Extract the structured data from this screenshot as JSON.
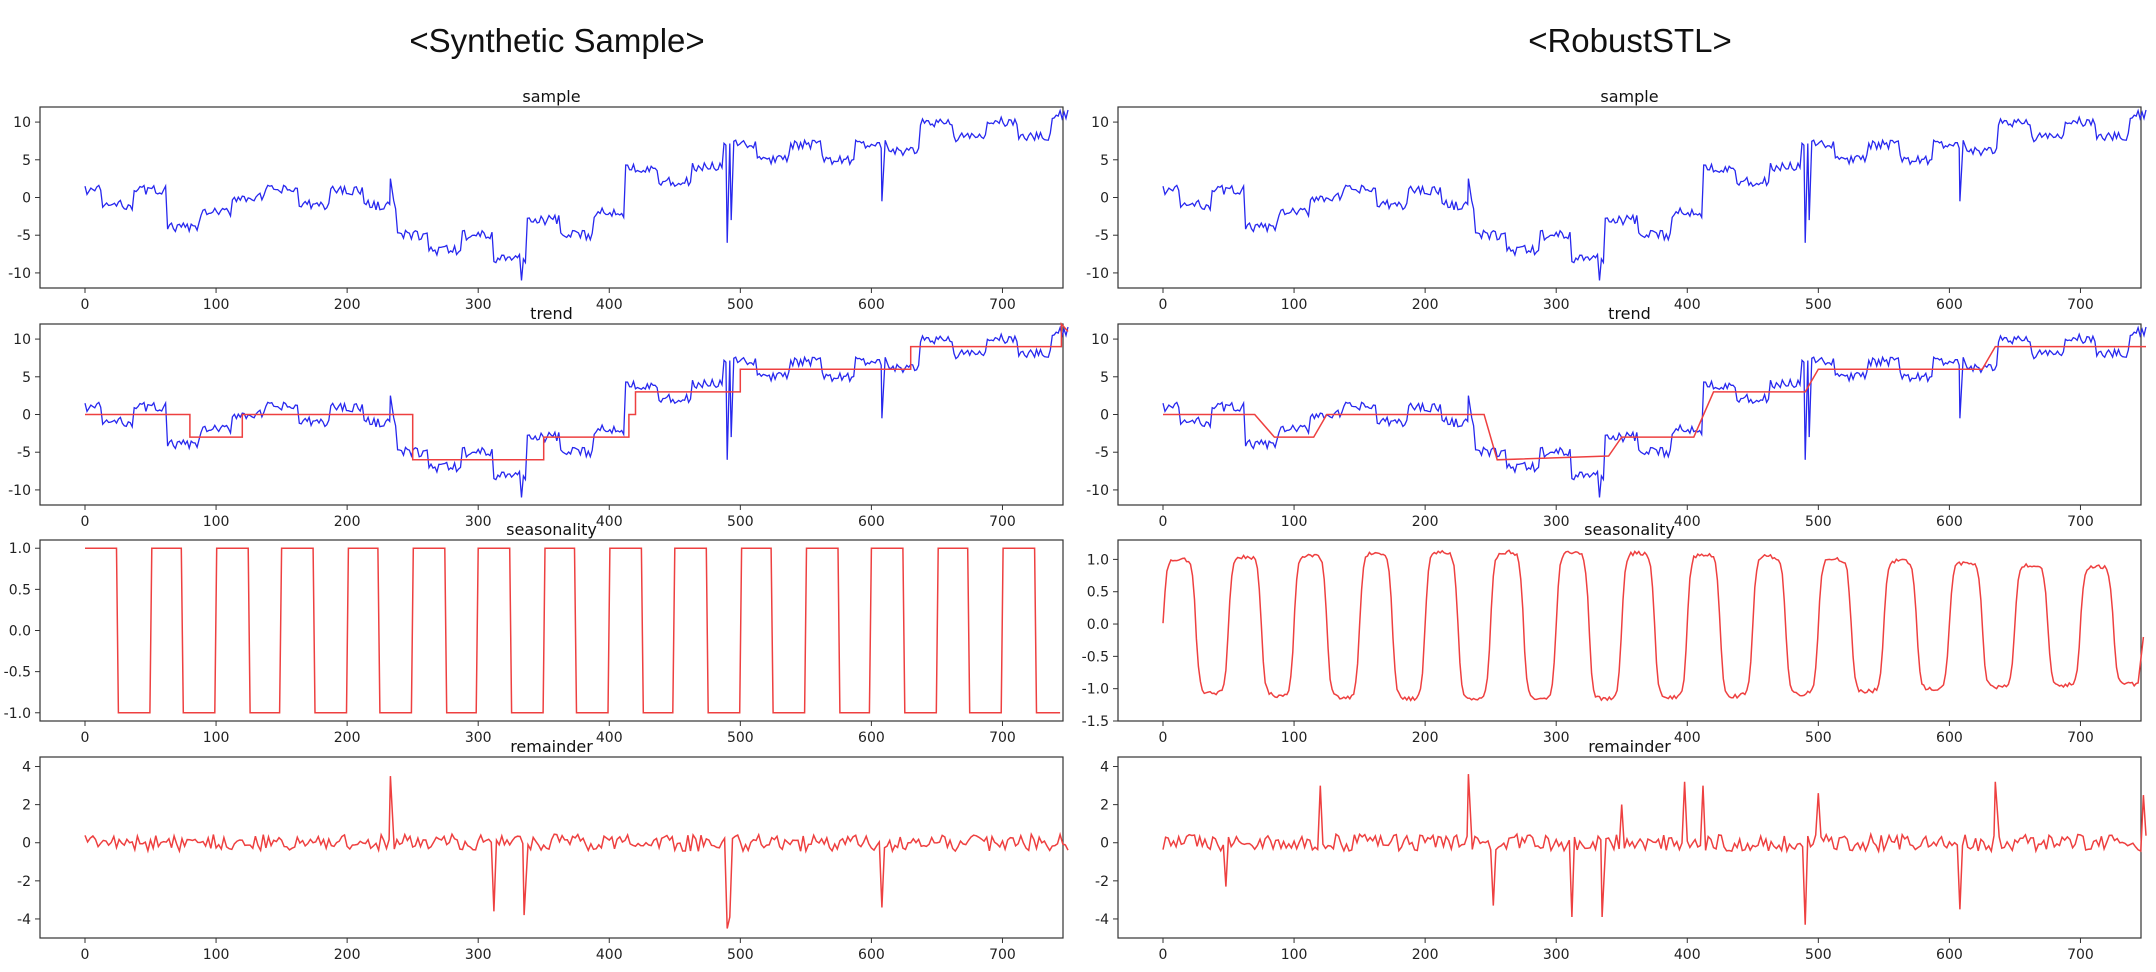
{
  "figure": {
    "left_title": "<Synthetic Sample>",
    "right_title": "<RobustSTL>"
  },
  "colors": {
    "blue": "#2828ee",
    "red": "#ee4040",
    "axis": "#333333"
  },
  "chart_data": [
    {
      "type": "line",
      "column": "left",
      "title": "sample",
      "xlim": [
        0,
        750
      ],
      "ylim": [
        -12,
        12
      ],
      "xticks": [
        0,
        100,
        200,
        300,
        400,
        500,
        600,
        700
      ],
      "yticks": [
        10,
        5,
        0,
        -5,
        -10
      ],
      "series": [
        {
          "name": "sample",
          "color": "#2828ee",
          "kind": "sample",
          "x": [
            0,
            25,
            50,
            75,
            100,
            125,
            150,
            175,
            200,
            225,
            250,
            275,
            300,
            325,
            350,
            375,
            400,
            425,
            450,
            475,
            500,
            525,
            550,
            575,
            600,
            625,
            650,
            675,
            700,
            725,
            750
          ],
          "values": [
            1,
            -1,
            1,
            -4,
            -2,
            0,
            1,
            -1,
            1,
            -1,
            -5,
            -7,
            -5,
            -8,
            -3,
            -5,
            -2,
            4,
            2,
            4,
            7,
            5,
            7,
            5,
            7,
            6,
            10,
            8,
            10,
            8,
            11
          ]
        }
      ]
    },
    {
      "type": "line",
      "column": "left",
      "title": "trend",
      "xlim": [
        0,
        750
      ],
      "ylim": [
        -12,
        12
      ],
      "xticks": [
        0,
        100,
        200,
        300,
        400,
        500,
        600,
        700
      ],
      "yticks": [
        10,
        5,
        0,
        -5,
        -10
      ],
      "series": [
        {
          "name": "sample",
          "color": "#2828ee",
          "kind": "sample",
          "x": [
            0,
            25,
            50,
            75,
            100,
            125,
            150,
            175,
            200,
            225,
            250,
            275,
            300,
            325,
            350,
            375,
            400,
            425,
            450,
            475,
            500,
            525,
            550,
            575,
            600,
            625,
            650,
            675,
            700,
            725,
            750
          ],
          "values": [
            1,
            -1,
            1,
            -4,
            -2,
            0,
            1,
            -1,
            1,
            -1,
            -5,
            -7,
            -5,
            -8,
            -3,
            -5,
            -2,
            4,
            2,
            4,
            7,
            5,
            7,
            5,
            7,
            6,
            10,
            8,
            10,
            8,
            11
          ]
        },
        {
          "name": "trend",
          "color": "#ee4040",
          "kind": "step",
          "x": [
            0,
            80,
            80,
            120,
            120,
            250,
            250,
            350,
            350,
            415,
            415,
            420,
            420,
            500,
            500,
            630,
            630,
            745,
            745,
            750
          ],
          "values": [
            0,
            0,
            -3,
            -3,
            0,
            0,
            -6,
            -6,
            -3,
            -3,
            0,
            0,
            3,
            3,
            6,
            6,
            9,
            9,
            12,
            11
          ]
        }
      ]
    },
    {
      "type": "line",
      "column": "left",
      "title": "seasonality",
      "xlim": [
        0,
        750
      ],
      "ylim": [
        -1.1,
        1.1
      ],
      "xticks": [
        0,
        100,
        200,
        300,
        400,
        500,
        600,
        700
      ],
      "yticks": [
        1.0,
        0.5,
        0.0,
        -0.5,
        -1.0
      ],
      "ytick_labels": [
        "1.0",
        "0.5",
        "0.0",
        "-0.5",
        "-1.0"
      ],
      "series": [
        {
          "name": "seasonality",
          "color": "#ee4040",
          "kind": "square",
          "period": 50,
          "amplitude": 1
        }
      ]
    },
    {
      "type": "line",
      "column": "left",
      "title": "remainder",
      "xlim": [
        0,
        750
      ],
      "ylim": [
        -5,
        4.5
      ],
      "xticks": [
        0,
        100,
        200,
        300,
        400,
        500,
        600,
        700
      ],
      "yticks": [
        4,
        2,
        0,
        -2,
        -4
      ],
      "series": [
        {
          "name": "remainder",
          "color": "#ee4040",
          "kind": "noise",
          "spikes_x": [
            233,
            312,
            335,
            490,
            492,
            608
          ],
          "spikes_y": [
            3.5,
            -3.6,
            -3.8,
            -4.5,
            -3.9,
            -3.4
          ]
        }
      ]
    },
    {
      "type": "line",
      "column": "right",
      "title": "sample",
      "xlim": [
        0,
        750
      ],
      "ylim": [
        -12,
        12
      ],
      "xticks": [
        0,
        100,
        200,
        300,
        400,
        500,
        600,
        700
      ],
      "yticks": [
        10,
        5,
        0,
        -5,
        -10
      ],
      "series": [
        {
          "name": "sample",
          "color": "#2828ee",
          "kind": "sample",
          "x": [
            0,
            25,
            50,
            75,
            100,
            125,
            150,
            175,
            200,
            225,
            250,
            275,
            300,
            325,
            350,
            375,
            400,
            425,
            450,
            475,
            500,
            525,
            550,
            575,
            600,
            625,
            650,
            675,
            700,
            725,
            750
          ],
          "values": [
            1,
            -1,
            1,
            -4,
            -2,
            0,
            1,
            -1,
            1,
            -1,
            -5,
            -7,
            -5,
            -8,
            -3,
            -5,
            -2,
            4,
            2,
            4,
            7,
            5,
            7,
            5,
            7,
            6,
            10,
            8,
            10,
            8,
            11
          ]
        }
      ]
    },
    {
      "type": "line",
      "column": "right",
      "title": "trend",
      "xlim": [
        0,
        750
      ],
      "ylim": [
        -12,
        12
      ],
      "xticks": [
        0,
        100,
        200,
        300,
        400,
        500,
        600,
        700
      ],
      "yticks": [
        10,
        5,
        0,
        -5,
        -10
      ],
      "series": [
        {
          "name": "sample",
          "color": "#2828ee",
          "kind": "sample",
          "x": [
            0,
            25,
            50,
            75,
            100,
            125,
            150,
            175,
            200,
            225,
            250,
            275,
            300,
            325,
            350,
            375,
            400,
            425,
            450,
            475,
            500,
            525,
            550,
            575,
            600,
            625,
            650,
            675,
            700,
            725,
            750
          ],
          "values": [
            1,
            -1,
            1,
            -4,
            -2,
            0,
            1,
            -1,
            1,
            -1,
            -5,
            -7,
            -5,
            -8,
            -3,
            -5,
            -2,
            4,
            2,
            4,
            7,
            5,
            7,
            5,
            7,
            6,
            10,
            8,
            10,
            8,
            11
          ]
        },
        {
          "name": "trend",
          "color": "#ee4040",
          "kind": "step",
          "x": [
            0,
            70,
            85,
            115,
            125,
            245,
            255,
            340,
            350,
            405,
            420,
            490,
            500,
            625,
            635,
            745,
            750
          ],
          "values": [
            0,
            0,
            -3,
            -3,
            0,
            0,
            -6,
            -5.5,
            -3,
            -3,
            3,
            3,
            6,
            6,
            9,
            9,
            9
          ]
        }
      ]
    },
    {
      "type": "line",
      "column": "right",
      "title": "seasonality",
      "xlim": [
        0,
        750
      ],
      "ylim": [
        -1.5,
        1.3
      ],
      "xticks": [
        0,
        100,
        200,
        300,
        400,
        500,
        600,
        700
      ],
      "yticks": [
        1.0,
        0.5,
        0.0,
        -0.5,
        -1.0,
        -1.5
      ],
      "ytick_labels": [
        "1.0",
        "0.5",
        "0.0",
        "-0.5",
        "-1.0",
        "-1.5"
      ],
      "series": [
        {
          "name": "seasonality",
          "color": "#ee4040",
          "kind": "smooth-square",
          "period": 50,
          "amplitude": 1
        }
      ]
    },
    {
      "type": "line",
      "column": "right",
      "title": "remainder",
      "xlim": [
        0,
        750
      ],
      "ylim": [
        -5,
        4.5
      ],
      "xticks": [
        0,
        100,
        200,
        300,
        400,
        500,
        600,
        700
      ],
      "yticks": [
        4,
        2,
        0,
        -2,
        -4
      ],
      "series": [
        {
          "name": "remainder",
          "color": "#ee4040",
          "kind": "noise",
          "spikes_x": [
            48,
            120,
            233,
            252,
            312,
            335,
            350,
            398,
            412,
            490,
            500,
            608,
            635,
            748
          ],
          "spikes_y": [
            -2.3,
            3.0,
            3.6,
            -3.3,
            -3.9,
            -3.9,
            2.0,
            3.2,
            3.0,
            -4.3,
            2.6,
            -3.5,
            3.2,
            2.5
          ]
        }
      ]
    }
  ]
}
